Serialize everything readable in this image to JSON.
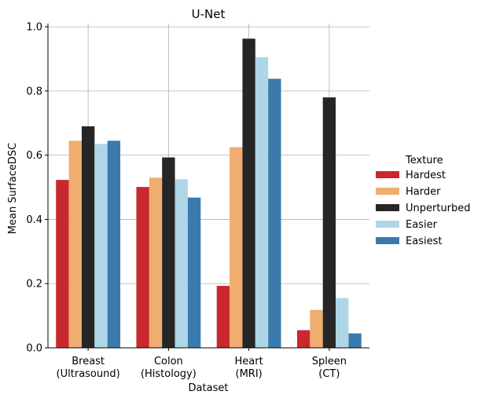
{
  "chart_data": {
    "type": "bar",
    "title": "U-Net",
    "xlabel": "Dataset",
    "ylabel": "Mean SurfaceDSC",
    "ylim": [
      0,
      1.01
    ],
    "yticks": [
      "0.0",
      "0.2",
      "0.4",
      "0.6",
      "0.8",
      "1.0"
    ],
    "ytick_values": [
      0,
      0.2,
      0.4,
      0.6,
      0.8,
      1.0
    ],
    "grid": true,
    "legend_position": "right",
    "legend_title": "Texture",
    "categories": [
      [
        "Breast",
        "(Ultrasound)"
      ],
      [
        "Colon",
        "(Histology)"
      ],
      [
        "Heart",
        "(MRI)"
      ],
      [
        "Spleen",
        "(CT)"
      ]
    ],
    "series": [
      {
        "name": "Hardest",
        "color": "#c9282d",
        "values": [
          0.523,
          0.501,
          0.193,
          0.055
        ]
      },
      {
        "name": "Harder",
        "color": "#efad6f",
        "values": [
          0.645,
          0.53,
          0.625,
          0.118
        ]
      },
      {
        "name": "Unperturbed",
        "color": "#262626",
        "values": [
          0.69,
          0.593,
          0.963,
          0.78
        ]
      },
      {
        "name": "Easier",
        "color": "#afd6e6",
        "values": [
          0.635,
          0.525,
          0.905,
          0.155
        ]
      },
      {
        "name": "Easiest",
        "color": "#3a7aad",
        "values": [
          0.645,
          0.468,
          0.838,
          0.045
        ]
      }
    ]
  }
}
